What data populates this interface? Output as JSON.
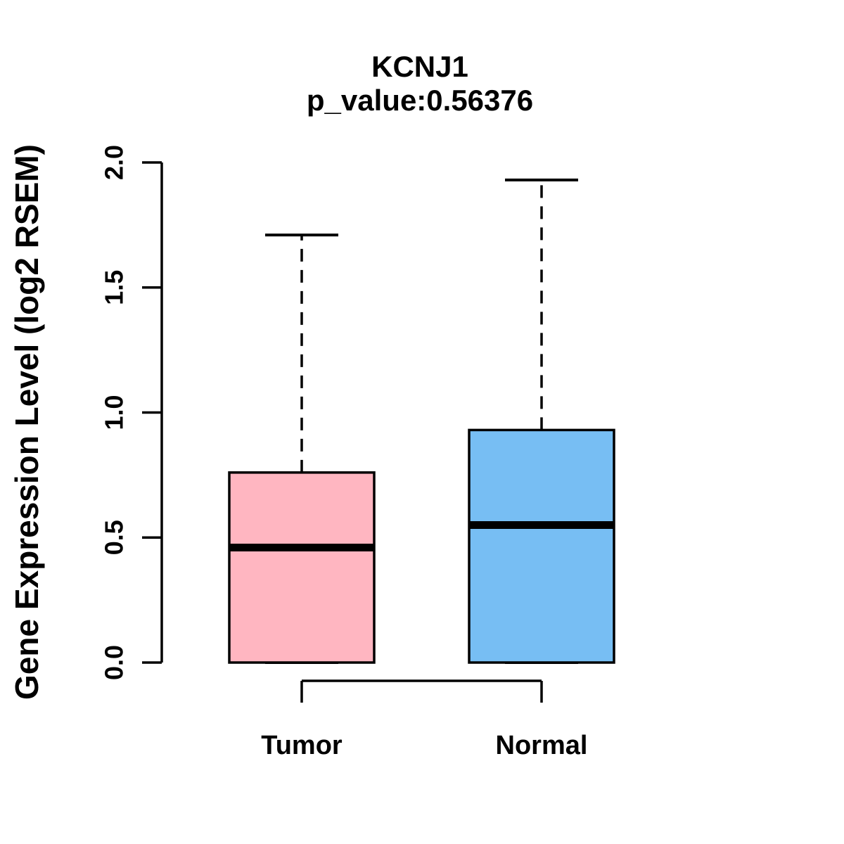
{
  "chart_data": {
    "type": "boxplot",
    "title": "KCNJ1",
    "subtitle": "p_value:0.56376",
    "gene": "KCNJ1",
    "p_value": "0.56376",
    "ylabel": "Gene Expression Level (log2 RSEM)",
    "ylim": [
      0,
      2
    ],
    "y_ticks": [
      {
        "value": 0.0,
        "label": "0.0"
      },
      {
        "value": 0.5,
        "label": "0.5"
      },
      {
        "value": 1.0,
        "label": "1.0"
      },
      {
        "value": 1.5,
        "label": "1.5"
      },
      {
        "value": 2.0,
        "label": "2.0"
      }
    ],
    "legend_position": "none",
    "grid": false,
    "groups": [
      {
        "label": "Tumor",
        "color": "#FFB6C1",
        "stats": {
          "min": 0,
          "q1": 0,
          "median": 0.46,
          "q3": 0.76,
          "whisker_high": 1.71
        }
      },
      {
        "label": "Normal",
        "color": "#77BEF3",
        "stats": {
          "min": 0,
          "q1": 0,
          "median": 0.55,
          "q3": 0.93,
          "whisker_high": 1.93
        }
      }
    ]
  },
  "colors": {
    "stroke": "#000000",
    "background": "#ffffff",
    "tumor_fill": "#FFB6C1",
    "normal_fill": "#77BEF3"
  }
}
